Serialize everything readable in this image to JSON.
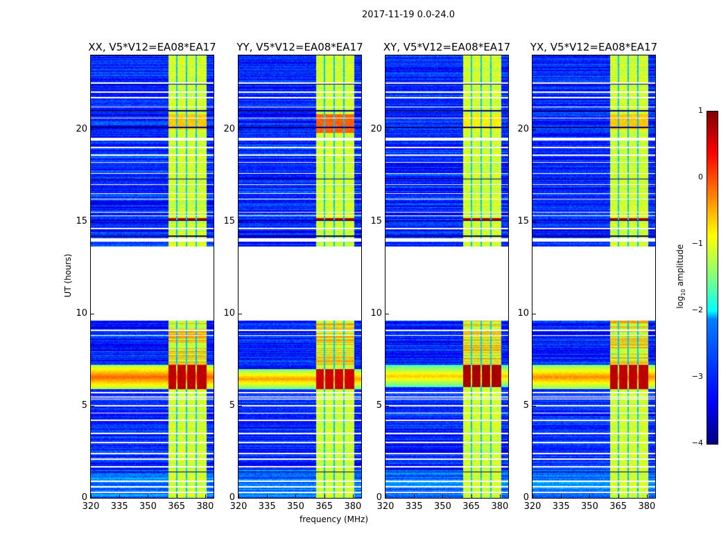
{
  "chart_data": {
    "type": "heatmap",
    "title": "2017-11-19 0.0-24.0",
    "xlabel": "frequency (MHz)",
    "ylabel": "UT (hours)",
    "xlim": [
      320,
      384.4
    ],
    "ylim": [
      0,
      24
    ],
    "xticks": [
      320,
      335,
      350,
      365,
      380
    ],
    "yticks": [
      0,
      5,
      10,
      15,
      20
    ],
    "colormap": "jet",
    "colorbar": {
      "label": "log10 amplitude",
      "label_main": "log",
      "label_sub": "10",
      "label_rest": " amplitude",
      "vmin": -4,
      "vmax": 1,
      "ticks": [
        1,
        0,
        -1,
        -2,
        -3,
        -4
      ]
    },
    "background_level": -3.2,
    "no_data_hours": [
      [
        9.62,
        13.65
      ],
      [
        13.9,
        14.08
      ]
    ],
    "flagged_white_hours": [
      0.3,
      0.6,
      0.9,
      1.7,
      2.1,
      2.4,
      3.0,
      3.5,
      4.2,
      4.6,
      5.0,
      5.35,
      5.42,
      5.5,
      5.7,
      8.8,
      9.1,
      14.6,
      15.3,
      15.5,
      16.2,
      16.5,
      17.0,
      17.6,
      18.2,
      18.6,
      19.0,
      19.42,
      19.5,
      20.6,
      21.2,
      21.7,
      22.0,
      22.5
    ],
    "dark_hours": [
      1.4,
      14.2,
      15.05,
      17.3,
      20.1,
      21.0,
      22.45
    ],
    "rfi_band_mhz": [
      [
        360.8,
        364.8
      ],
      [
        365.6,
        369.8
      ],
      [
        370.6,
        374.8
      ],
      [
        375.6,
        380.6
      ]
    ],
    "rfi_band_level": -1.1,
    "panels": [
      {
        "title": "XX, V5*V12=EA08*EA17",
        "event_hours": [
          5.9,
          7.2
        ],
        "event_level": -0.1,
        "event_band_level": 0.7,
        "bright_band_hours": [
          20.0,
          20.8
        ],
        "bright_band_level": -0.6
      },
      {
        "title": "YY, V5*V12=EA08*EA17",
        "event_hours": [
          5.9,
          7.0
        ],
        "event_level": -0.4,
        "event_band_level": 0.6,
        "bright_band_hours": [
          19.8,
          20.8
        ],
        "bright_band_level": -0.1
      },
      {
        "title": "XY, V5*V12=EA08*EA17",
        "event_hours": [
          6.0,
          7.2
        ],
        "event_level": -0.6,
        "event_band_level": 0.8,
        "bright_band_hours": [
          20.0,
          20.8
        ],
        "bright_band_level": -0.8
      },
      {
        "title": "YX, V5*V12=EA08*EA17",
        "event_hours": [
          5.9,
          7.2
        ],
        "event_level": -0.3,
        "event_band_level": 0.7,
        "bright_band_hours": [
          20.0,
          20.8
        ],
        "bright_band_level": -0.6
      }
    ]
  }
}
